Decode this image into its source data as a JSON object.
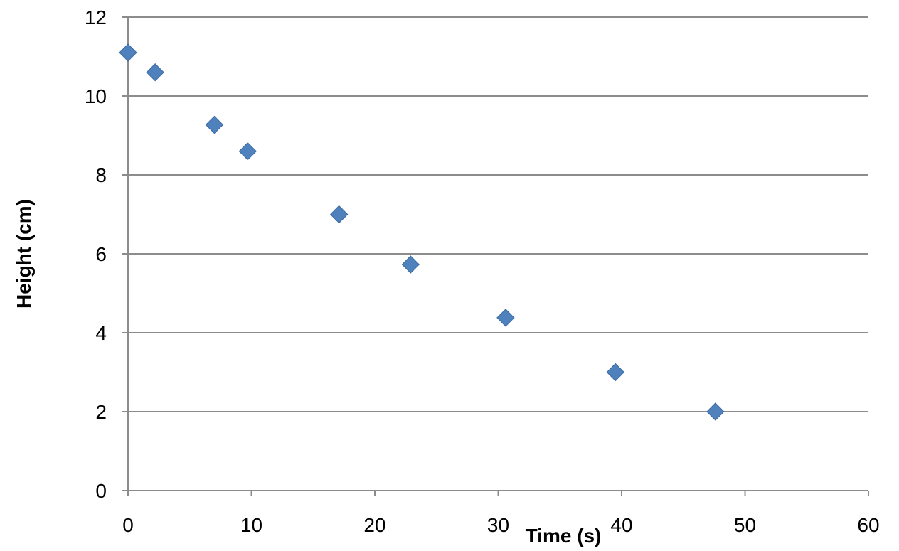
{
  "chart_data": {
    "type": "scatter",
    "title": "",
    "xlabel": "Time (s)",
    "ylabel": "Height (cm)",
    "xlim": [
      0,
      60
    ],
    "ylim": [
      0,
      12
    ],
    "xticks": [
      "0",
      "10",
      "20",
      "30",
      "40",
      "50",
      "60"
    ],
    "yticks": [
      "0",
      "2",
      "4",
      "6",
      "8",
      "10",
      "12"
    ],
    "grid": "horizontal major gridlines",
    "legend": "none",
    "marker": "diamond",
    "series": [
      {
        "color": "#4f81bd",
        "points": [
          {
            "x": 0,
            "y": 11.1
          },
          {
            "x": 2.2,
            "y": 10.6
          },
          {
            "x": 7.0,
            "y": 9.27
          },
          {
            "x": 9.7,
            "y": 8.6
          },
          {
            "x": 17.1,
            "y": 7.0
          },
          {
            "x": 22.9,
            "y": 5.73
          },
          {
            "x": 30.6,
            "y": 4.38
          },
          {
            "x": 39.5,
            "y": 3.0
          },
          {
            "x": 47.6,
            "y": 2.0
          }
        ]
      }
    ]
  }
}
